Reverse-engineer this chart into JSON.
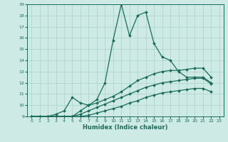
{
  "xlabel": "Humidex (Indice chaleur)",
  "bg_color": "#ceeae4",
  "grid_color": "#b0d4cc",
  "line_color": "#1a6b5a",
  "xlim": [
    -0.5,
    23.5
  ],
  "ylim": [
    9,
    19
  ],
  "xticks": [
    0,
    1,
    2,
    3,
    4,
    5,
    6,
    7,
    8,
    9,
    10,
    11,
    12,
    13,
    14,
    15,
    16,
    17,
    18,
    19,
    20,
    21,
    22,
    23
  ],
  "yticks": [
    9,
    10,
    11,
    12,
    13,
    14,
    15,
    16,
    17,
    18,
    19
  ],
  "series1": [
    [
      0,
      9
    ],
    [
      1,
      9
    ],
    [
      2,
      9
    ],
    [
      3,
      9.2
    ],
    [
      4,
      9.5
    ],
    [
      5,
      10.7
    ],
    [
      6,
      10.2
    ],
    [
      7,
      10.0
    ],
    [
      8,
      10.5
    ],
    [
      9,
      12.0
    ],
    [
      10,
      15.8
    ],
    [
      11,
      19.0
    ],
    [
      12,
      16.2
    ],
    [
      13,
      18.0
    ],
    [
      14,
      18.3
    ],
    [
      15,
      15.5
    ],
    [
      16,
      14.3
    ],
    [
      17,
      14.0
    ],
    [
      18,
      13.0
    ],
    [
      19,
      12.5
    ],
    [
      20,
      12.5
    ],
    [
      21,
      12.5
    ],
    [
      22,
      12.0
    ]
  ],
  "series2": [
    [
      0,
      9
    ],
    [
      1,
      9
    ],
    [
      2,
      9
    ],
    [
      3,
      9
    ],
    [
      4,
      9
    ],
    [
      5,
      9
    ],
    [
      6,
      9.5
    ],
    [
      7,
      10.0
    ],
    [
      8,
      10.2
    ],
    [
      9,
      10.5
    ],
    [
      10,
      10.8
    ],
    [
      11,
      11.2
    ],
    [
      12,
      11.7
    ],
    [
      13,
      12.2
    ],
    [
      14,
      12.5
    ],
    [
      15,
      12.8
    ],
    [
      16,
      13.0
    ],
    [
      17,
      13.1
    ],
    [
      18,
      13.1
    ],
    [
      19,
      13.2
    ],
    [
      20,
      13.3
    ],
    [
      21,
      13.3
    ],
    [
      22,
      12.5
    ]
  ],
  "series3": [
    [
      0,
      9
    ],
    [
      1,
      9
    ],
    [
      2,
      9
    ],
    [
      3,
      9
    ],
    [
      4,
      9
    ],
    [
      5,
      9
    ],
    [
      6,
      9.2
    ],
    [
      7,
      9.5
    ],
    [
      8,
      9.8
    ],
    [
      9,
      10.1
    ],
    [
      10,
      10.4
    ],
    [
      11,
      10.7
    ],
    [
      12,
      11.0
    ],
    [
      13,
      11.3
    ],
    [
      14,
      11.6
    ],
    [
      15,
      11.8
    ],
    [
      16,
      12.0
    ],
    [
      17,
      12.1
    ],
    [
      18,
      12.2
    ],
    [
      19,
      12.3
    ],
    [
      20,
      12.4
    ],
    [
      21,
      12.4
    ],
    [
      22,
      11.9
    ]
  ],
  "series4": [
    [
      0,
      9
    ],
    [
      1,
      9
    ],
    [
      2,
      9
    ],
    [
      3,
      9
    ],
    [
      4,
      9
    ],
    [
      5,
      9
    ],
    [
      6,
      9
    ],
    [
      7,
      9.1
    ],
    [
      8,
      9.3
    ],
    [
      9,
      9.5
    ],
    [
      10,
      9.7
    ],
    [
      11,
      9.9
    ],
    [
      12,
      10.2
    ],
    [
      13,
      10.4
    ],
    [
      14,
      10.7
    ],
    [
      15,
      10.9
    ],
    [
      16,
      11.1
    ],
    [
      17,
      11.2
    ],
    [
      18,
      11.3
    ],
    [
      19,
      11.4
    ],
    [
      20,
      11.5
    ],
    [
      21,
      11.5
    ],
    [
      22,
      11.2
    ]
  ]
}
